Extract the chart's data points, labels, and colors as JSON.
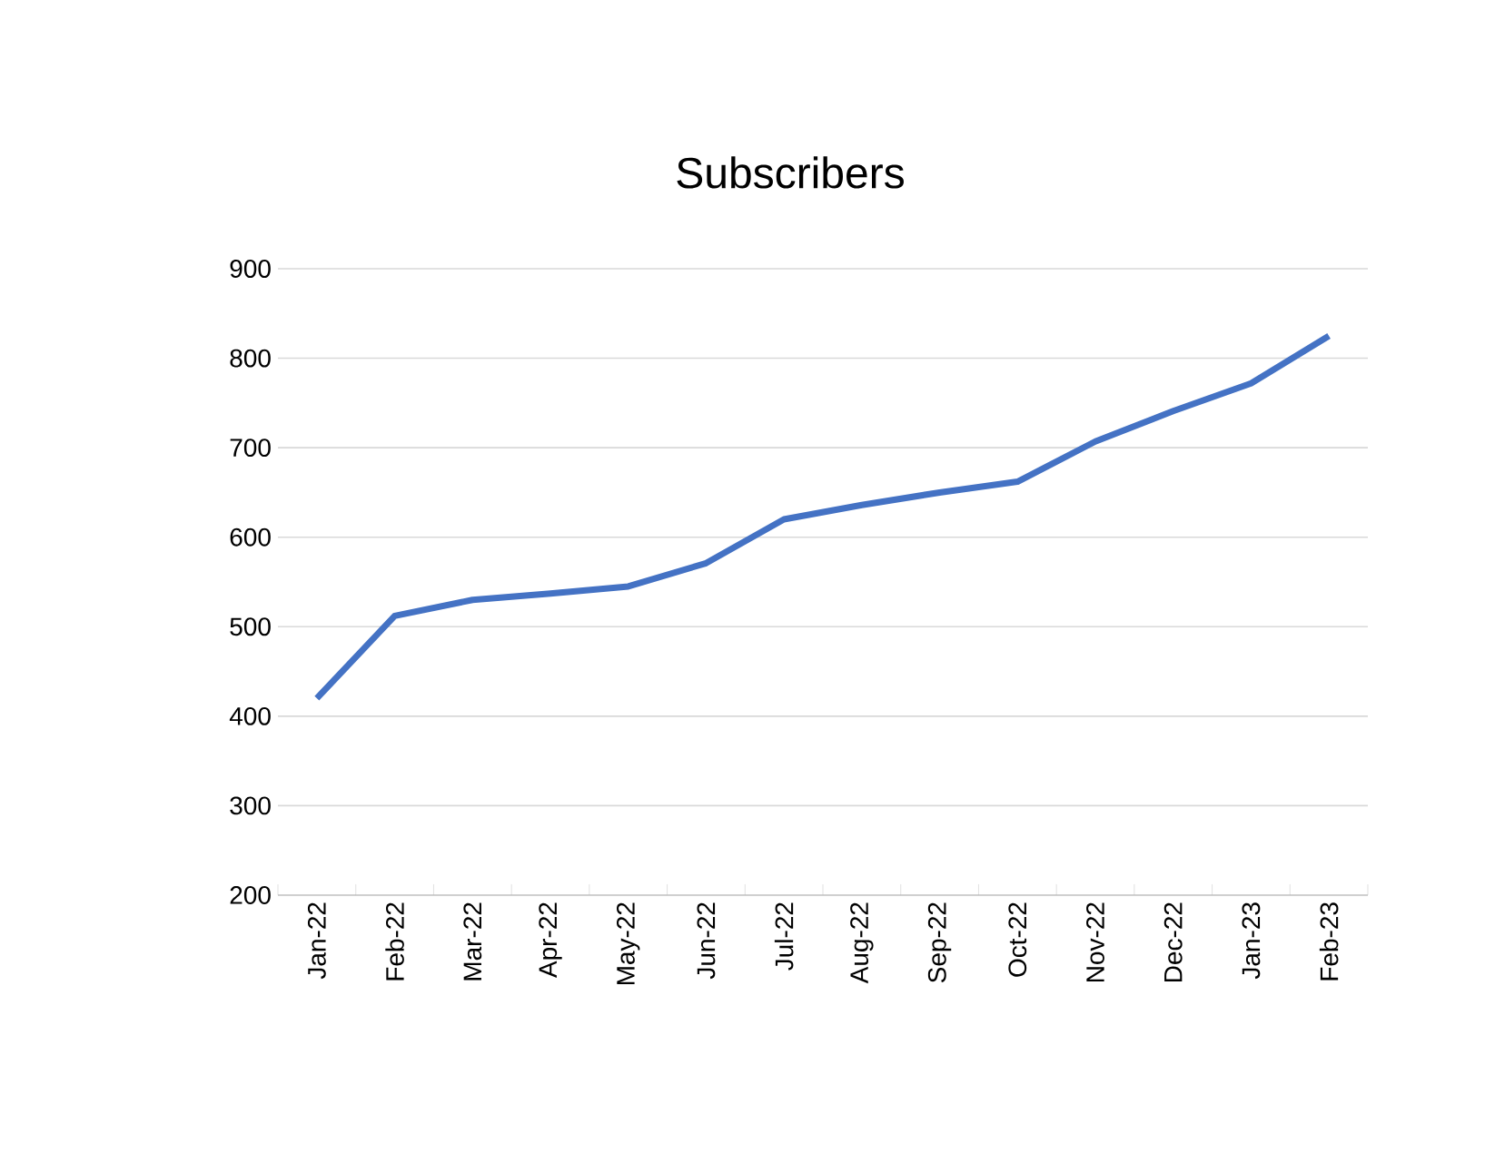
{
  "chart_data": {
    "type": "line",
    "title": "Subscribers",
    "categories": [
      "Jan-22",
      "Feb-22",
      "Mar-22",
      "Apr-22",
      "May-22",
      "Jun-22",
      "Jul-22",
      "Aug-22",
      "Sep-22",
      "Oct-22",
      "Nov-22",
      "Dec-22",
      "Jan-23",
      "Feb-23"
    ],
    "values": [
      420,
      512,
      530,
      537,
      545,
      571,
      620,
      636,
      650,
      662,
      707,
      741,
      772,
      825
    ],
    "color": "#4472c4",
    "ylim": [
      200,
      900
    ],
    "yticks": [
      200,
      300,
      400,
      500,
      600,
      700,
      800,
      900
    ],
    "grid": "y",
    "legend": false,
    "marker": "none",
    "line_style": "solid"
  }
}
